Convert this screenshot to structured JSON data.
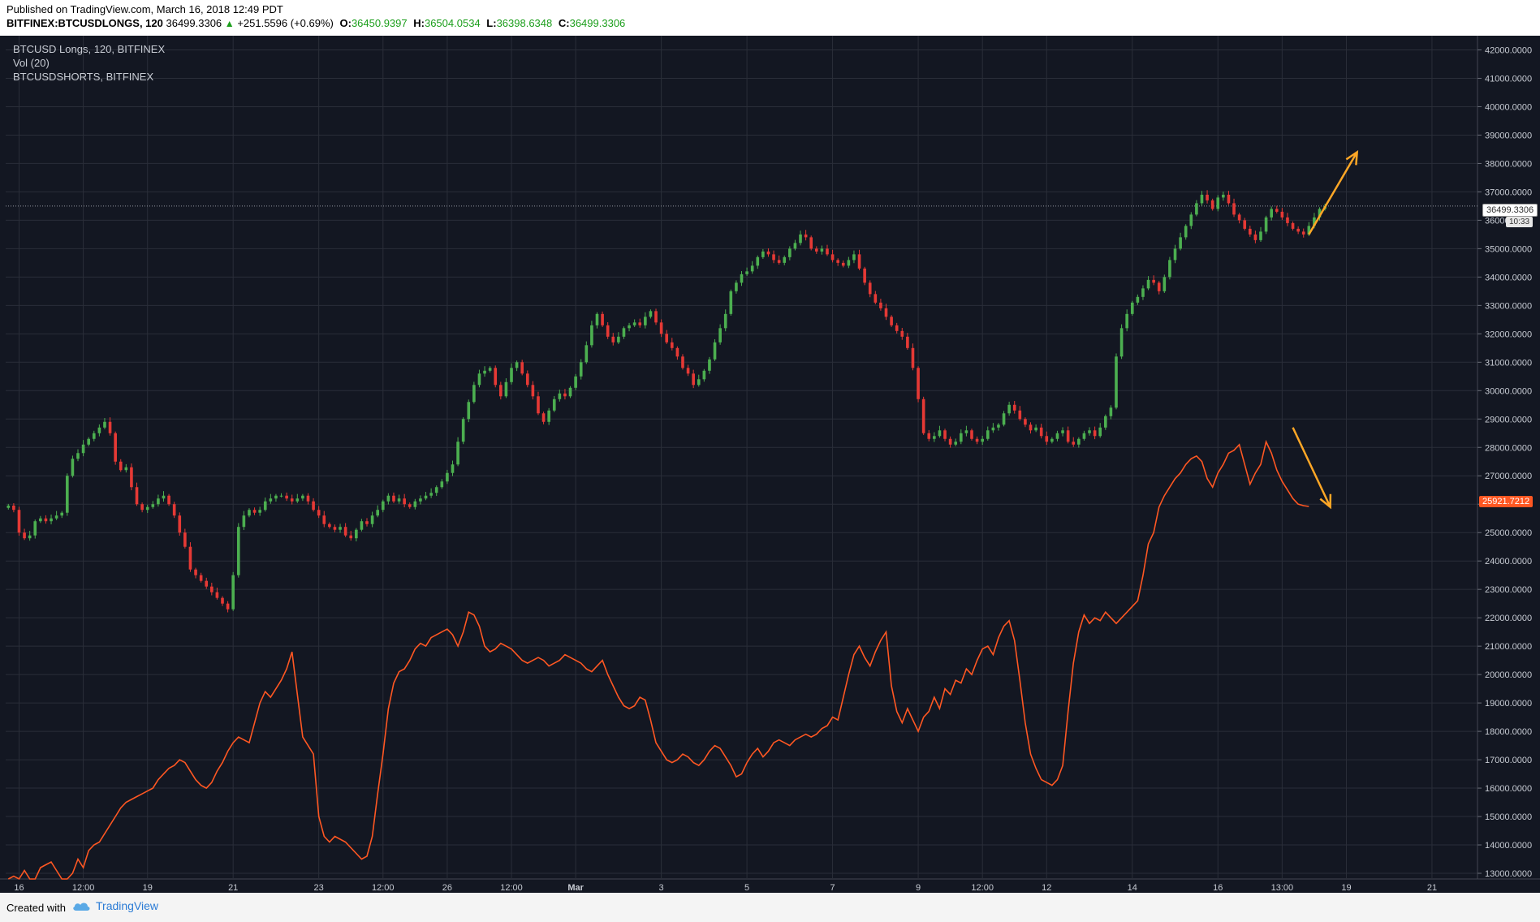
{
  "header": {
    "published": "Published on TradingView.com, March 16, 2018 12:49 PDT",
    "symbol": "BITFINEX:BTCUSDLONGS, 120",
    "last": "36499.3306",
    "change": "+251.5596 (+0.69%)",
    "o_label": "O:",
    "o": "36450.9397",
    "h_label": "H:",
    "h": "36504.0534",
    "l_label": "L:",
    "l": "36398.6348",
    "c_label": "C:",
    "c": "36499.3306"
  },
  "legend": {
    "line1": "BTCUSD Longs, 120, BITFINEX",
    "line2": "Vol (20)",
    "line3": "BTCUSDSHORTS, BITFINEX"
  },
  "tags": {
    "long_price": "36499.3306",
    "countdown": "10:33",
    "short_price": "25921.7212"
  },
  "footer": {
    "created": "Created with",
    "brand": "TradingView"
  },
  "colors": {
    "bg": "#131722",
    "grid": "#2a2e39",
    "up": "#4caf50",
    "down": "#e53935",
    "shorts": "#ff5722",
    "arrow": "#ffa726",
    "axis_text": "#c8ccd4"
  },
  "chart_data": {
    "type": "line",
    "y_axis": {
      "min": 12800,
      "max": 42500,
      "ticks": [
        "13000.0000",
        "14000.0000",
        "15000.0000",
        "16000.0000",
        "17000.0000",
        "18000.0000",
        "19000.0000",
        "20000.0000",
        "21000.0000",
        "22000.0000",
        "23000.0000",
        "24000.0000",
        "25000.0000",
        "26000.0000",
        "27000.0000",
        "28000.0000",
        "29000.0000",
        "30000.0000",
        "31000.0000",
        "32000.0000",
        "33000.0000",
        "34000.0000",
        "35000.0000",
        "36000.0000",
        "37000.0000",
        "38000.0000",
        "39000.0000",
        "40000.0000",
        "41000.0000",
        "42000.0000"
      ]
    },
    "x_axis": {
      "ticks": [
        {
          "label": "16",
          "i": 2
        },
        {
          "label": "12:00",
          "i": 14
        },
        {
          "label": "19",
          "i": 26
        },
        {
          "label": "21",
          "i": 42
        },
        {
          "label": "23",
          "i": 58
        },
        {
          "label": "12:00",
          "i": 70
        },
        {
          "label": "26",
          "i": 82
        },
        {
          "label": "12:00",
          "i": 94
        },
        {
          "label": "Mar",
          "i": 106
        },
        {
          "label": "3",
          "i": 122
        },
        {
          "label": "5",
          "i": 138
        },
        {
          "label": "7",
          "i": 154
        },
        {
          "label": "9",
          "i": 170
        },
        {
          "label": "12:00",
          "i": 182
        },
        {
          "label": "12",
          "i": 194
        },
        {
          "label": "14",
          "i": 210
        },
        {
          "label": "16",
          "i": 226
        },
        {
          "label": "13:00",
          "i": 238
        },
        {
          "label": "19",
          "i": 250
        },
        {
          "label": "21",
          "i": 266
        }
      ],
      "total_slots": 275
    },
    "series": [
      {
        "name": "BTCUSD Longs",
        "kind": "candles",
        "values": [
          25950,
          25800,
          25000,
          24800,
          24900,
          25400,
          25500,
          25400,
          25500,
          25600,
          25700,
          27000,
          27600,
          27800,
          28100,
          28300,
          28500,
          28700,
          28900,
          28500,
          27500,
          27200,
          27300,
          26600,
          26000,
          25800,
          25900,
          26000,
          26200,
          26300,
          26000,
          25600,
          25000,
          24500,
          23700,
          23500,
          23300,
          23100,
          22900,
          22700,
          22500,
          22300,
          23500,
          25200,
          25600,
          25800,
          25700,
          25800,
          26100,
          26200,
          26300,
          26300,
          26200,
          26100,
          26200,
          26300,
          26100,
          25800,
          25600,
          25300,
          25200,
          25100,
          25200,
          24900,
          24800,
          25100,
          25400,
          25300,
          25600,
          25800,
          26100,
          26300,
          26100,
          26200,
          26000,
          25900,
          26100,
          26200,
          26300,
          26400,
          26600,
          26800,
          27100,
          27400,
          28200,
          29000,
          29600,
          30200,
          30600,
          30700,
          30800,
          30200,
          29800,
          30300,
          30800,
          31000,
          30600,
          30200,
          29800,
          29200,
          28900,
          29300,
          29700,
          29900,
          29800,
          30100,
          30500,
          31000,
          31600,
          32300,
          32700,
          32300,
          31900,
          31700,
          31900,
          32200,
          32300,
          32400,
          32300,
          32600,
          32800,
          32400,
          32000,
          31700,
          31500,
          31200,
          30800,
          30600,
          30200,
          30400,
          30700,
          31100,
          31700,
          32200,
          32700,
          33500,
          33800,
          34100,
          34200,
          34400,
          34700,
          34900,
          34800,
          34600,
          34500,
          34700,
          35000,
          35200,
          35500,
          35400,
          35000,
          34900,
          35000,
          34800,
          34600,
          34500,
          34400,
          34600,
          34800,
          34300,
          33800,
          33400,
          33100,
          32900,
          32600,
          32300,
          32100,
          31900,
          31500,
          30800,
          29700,
          28500,
          28300,
          28400,
          28600,
          28300,
          28100,
          28200,
          28500,
          28600,
          28300,
          28200,
          28300,
          28600,
          28700,
          28800,
          29200,
          29500,
          29300,
          29000,
          28800,
          28600,
          28700,
          28400,
          28200,
          28300,
          28500,
          28600,
          28200,
          28100,
          28300,
          28500,
          28600,
          28400,
          28700,
          29100,
          29400,
          31200,
          32200,
          32700,
          33100,
          33300,
          33600,
          33900,
          33800,
          33500,
          34000,
          34600,
          35000,
          35400,
          35800,
          36200,
          36600,
          36900,
          36700,
          36400,
          36800,
          36900,
          36600,
          36200,
          36000,
          35700,
          35500,
          35300,
          35600,
          36100,
          36400,
          36300,
          36100,
          35900,
          35700,
          35600,
          35500,
          35800,
          36100,
          36400,
          36499
        ]
      },
      {
        "name": "BTCUSDSHORTS",
        "kind": "line",
        "values": [
          12600,
          12900,
          12500,
          13100,
          12200,
          12600,
          13200,
          13300,
          13400,
          13100,
          12700,
          12500,
          13000,
          13500,
          13200,
          13800,
          14000,
          14100,
          14400,
          14700,
          15000,
          15300,
          15500,
          15600,
          15700,
          15800,
          15900,
          16000,
          16300,
          16500,
          16700,
          16800,
          17000,
          16900,
          16600,
          16300,
          16100,
          16000,
          16200,
          16600,
          16900,
          17300,
          17600,
          17800,
          17700,
          17600,
          18300,
          19000,
          19400,
          19200,
          19500,
          19800,
          20200,
          20800,
          19300,
          17800,
          17500,
          17200,
          15000,
          14300,
          14100,
          14300,
          14200,
          14100,
          13900,
          13700,
          13500,
          13600,
          14300,
          15800,
          17200,
          18800,
          19700,
          20100,
          20200,
          20500,
          20900,
          21100,
          21000,
          21300,
          21400,
          21500,
          21600,
          21400,
          21000,
          21500,
          22200,
          22100,
          21700,
          21000,
          20800,
          20900,
          21100,
          21000,
          20900,
          20700,
          20500,
          20400,
          20500,
          20600,
          20500,
          20300,
          20400,
          20500,
          20700,
          20600,
          20500,
          20400,
          20200,
          20100,
          20300,
          20500,
          20000,
          19600,
          19200,
          18900,
          18800,
          18900,
          19200,
          19100,
          18400,
          17600,
          17300,
          17000,
          16900,
          17000,
          17200,
          17100,
          16900,
          16800,
          17000,
          17300,
          17500,
          17400,
          17100,
          16800,
          16400,
          16500,
          16900,
          17200,
          17400,
          17100,
          17300,
          17600,
          17700,
          17600,
          17500,
          17700,
          17800,
          17900,
          17800,
          17900,
          18100,
          18200,
          18500,
          18400,
          19200,
          20000,
          20700,
          21000,
          20600,
          20300,
          20800,
          21200,
          21500,
          19600,
          18700,
          18300,
          18800,
          18400,
          18000,
          18500,
          18700,
          19200,
          18800,
          19500,
          19300,
          19800,
          19700,
          20200,
          20000,
          20500,
          20900,
          21000,
          20700,
          21300,
          21700,
          21900,
          21200,
          19800,
          18300,
          17200,
          16700,
          16300,
          16200,
          16100,
          16300,
          16800,
          18700,
          20400,
          21500,
          22100,
          21800,
          22000,
          21900,
          22200,
          22000,
          21800,
          22000,
          22200,
          22400,
          22600,
          23500,
          24600,
          25000,
          25900,
          26300,
          26600,
          26900,
          27100,
          27400,
          27600,
          27700,
          27500,
          26900,
          26600,
          27100,
          27400,
          27800,
          27900,
          28100,
          27400,
          26700,
          27100,
          27400,
          28200,
          27800,
          27200,
          26800,
          26500,
          26200,
          26000,
          25950,
          25921.7212
        ]
      }
    ],
    "annotations": [
      {
        "kind": "arrow",
        "color": "#ffa726",
        "from": {
          "i": 243,
          "y": 35500
        },
        "to": {
          "i": 252,
          "y": 38400
        }
      },
      {
        "kind": "arrow",
        "color": "#ffa726",
        "from": {
          "i": 240,
          "y": 28700
        },
        "to": {
          "i": 247,
          "y": 25900
        }
      }
    ],
    "current_price_line": 36499.3306
  }
}
